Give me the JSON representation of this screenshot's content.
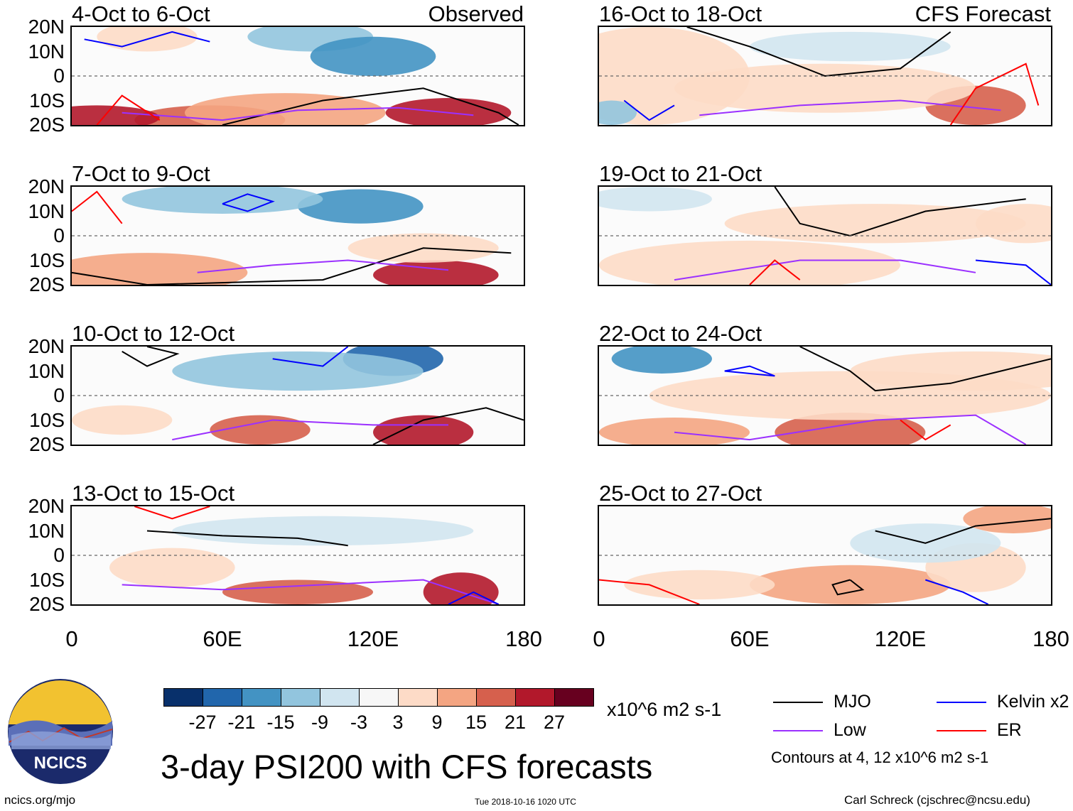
{
  "chart_data": {
    "type": "heatmap",
    "title": "3-day PSI200 with CFS forecasts",
    "variable": "PSI200",
    "units": "x10^6 m2 s-1",
    "xlim": [
      0,
      180
    ],
    "ylim": [
      -20,
      20
    ],
    "x_ticks": [
      "0",
      "60E",
      "120E",
      "180"
    ],
    "x_tick_values": [
      0,
      60,
      120,
      180
    ],
    "y_ticks": [
      "20N",
      "10N",
      "0",
      "10S",
      "20S"
    ],
    "y_tick_values": [
      20,
      10,
      0,
      -10,
      -20
    ],
    "colorbar": {
      "labels": [
        "-27",
        "-21",
        "-15",
        "-9",
        "-3",
        "3",
        "9",
        "15",
        "21",
        "27"
      ],
      "colors": [
        "#08306b",
        "#2166ac",
        "#4393c3",
        "#92c5de",
        "#d1e5f0",
        "#f7f7f7",
        "#fddbc7",
        "#f4a582",
        "#d6604d",
        "#b2182b",
        "#67001f"
      ]
    },
    "columns": [
      {
        "label": "Observed",
        "panels": [
          {
            "title": "4-Oct to 6-Oct"
          },
          {
            "title": "7-Oct to 9-Oct"
          },
          {
            "title": "10-Oct to 12-Oct"
          },
          {
            "title": "13-Oct to 15-Oct"
          }
        ]
      },
      {
        "label": "CFS Forecast",
        "panels": [
          {
            "title": "16-Oct to 18-Oct"
          },
          {
            "title": "19-Oct to 21-Oct"
          },
          {
            "title": "22-Oct to 24-Oct"
          },
          {
            "title": "25-Oct to 27-Oct"
          }
        ]
      }
    ],
    "legend": [
      {
        "name": "MJO",
        "color": "#000000"
      },
      {
        "name": "Kelvin x2",
        "color": "#0000ff"
      },
      {
        "name": "Low",
        "color": "#9b30ff"
      },
      {
        "name": "ER",
        "color": "#ff0000"
      }
    ],
    "contour_note": "Contours at 4, 12 x10^6 m2 s-1"
  },
  "logo_text": "NCICS",
  "footer": {
    "left": "ncics.org/mjo",
    "center": "Tue 2018-10-16 1020 UTC",
    "right": "Carl Schreck (cjschrec@ncsu.edu)"
  }
}
